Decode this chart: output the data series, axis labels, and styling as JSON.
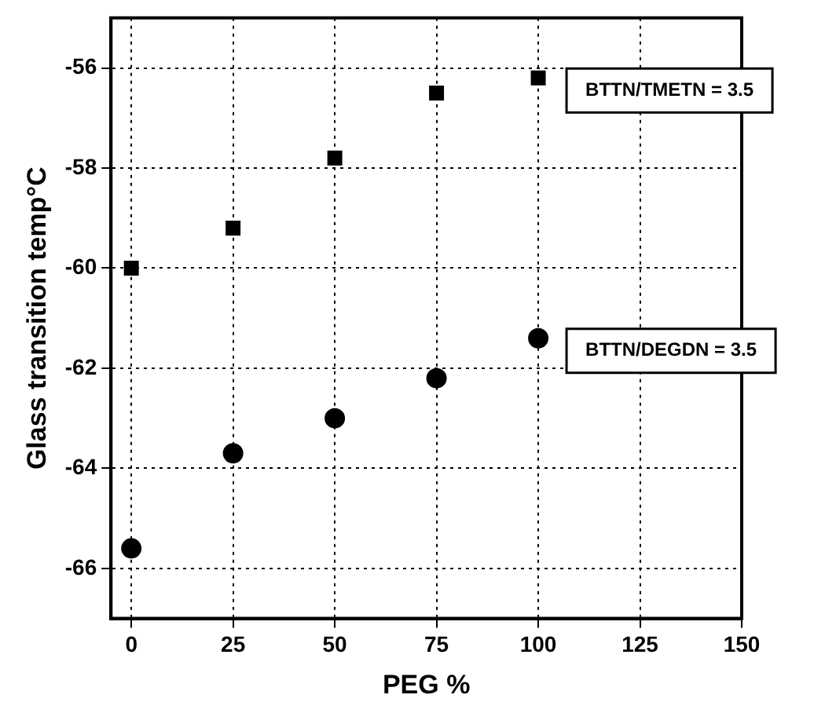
{
  "chart_data": {
    "type": "scatter",
    "xlabel": "PEG %",
    "ylabel": "Glass transition temp°C",
    "x": [
      0,
      25,
      50,
      75,
      100
    ],
    "series": [
      {
        "name": "BTTN/TMETN = 3.5",
        "color": "#000000",
        "marker": "square",
        "values": [
          -60.0,
          -59.2,
          -57.8,
          -56.5,
          -56.2
        ]
      },
      {
        "name": "BTTN/DEGDN = 3.5",
        "color": "#000000",
        "marker": "circle",
        "values": [
          -65.6,
          -63.7,
          -63.0,
          -62.2,
          -61.4
        ]
      }
    ],
    "xlim": [
      -5,
      150
    ],
    "xticks": [
      0,
      25,
      50,
      75,
      100,
      125,
      150
    ],
    "ylim": [
      -67,
      -55
    ],
    "yticks": [
      -56,
      -58,
      -60,
      -62,
      -64,
      -66
    ],
    "grid": true,
    "legend": false
  }
}
